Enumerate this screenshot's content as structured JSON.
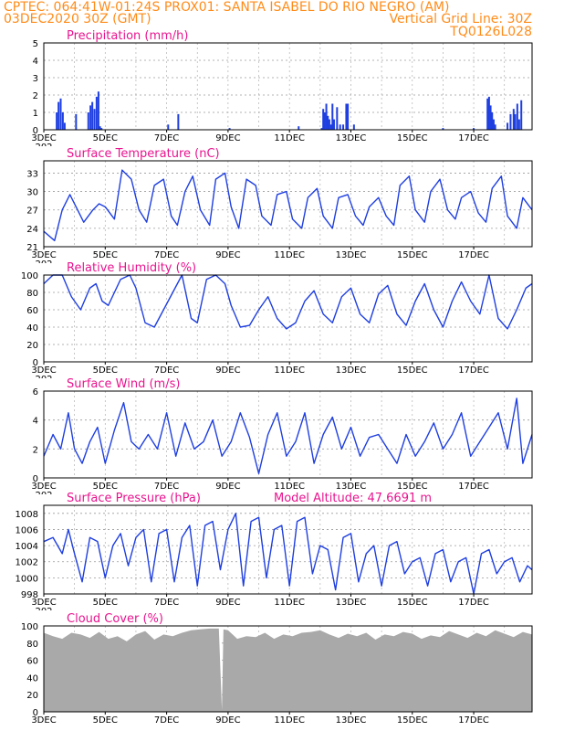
{
  "header": {
    "line1_left": "CPTEC:   064:41W-01:24S   PROX01: SANTA ISABEL DO RIO NEGRO (AM)",
    "line2_left": "03DEC2020 30Z (GMT)",
    "line2_right": "Vertical Grid Line: 30Z",
    "line3_right": "TQ0126L028"
  },
  "colors": {
    "header": "#ff8c1a",
    "title": "#e8158f",
    "series": "#1f3fe0",
    "cloud": "#a9a9a9",
    "precip": "#1f3fe0"
  },
  "x_axis": {
    "labels": [
      "3DEC",
      "5DEC",
      "7DEC",
      "9DEC",
      "11DEC",
      "13DEC",
      "15DEC",
      "17DEC"
    ],
    "label_days": [
      0,
      2,
      4,
      6,
      8,
      10,
      12,
      14
    ],
    "range_days": [
      0,
      15.9
    ],
    "year_fragment": "202"
  },
  "chart_data": [
    {
      "type": "bar",
      "title": "Precipitation (mm/h)",
      "ylim": [
        0,
        5
      ],
      "yticks": [
        0,
        1,
        2,
        3,
        4,
        5
      ],
      "x_days": [
        0.42,
        0.48,
        0.55,
        0.62,
        0.68,
        1.05,
        1.45,
        1.52,
        1.58,
        1.65,
        1.72,
        1.78,
        1.83,
        1.88,
        4.05,
        4.38,
        6.05,
        8.3,
        9.05,
        9.1,
        9.15,
        9.2,
        9.25,
        9.3,
        9.35,
        9.4,
        9.45,
        9.55,
        9.65,
        9.75,
        9.85,
        9.9,
        10.1,
        13.0,
        14.0,
        14.45,
        14.5,
        14.55,
        14.6,
        14.65,
        14.7,
        15.1,
        15.2,
        15.3,
        15.35,
        15.42,
        15.48,
        15.55
      ],
      "values": [
        1.0,
        1.6,
        1.8,
        1.0,
        0.4,
        0.9,
        1.0,
        1.4,
        1.6,
        1.2,
        1.9,
        2.2,
        0.2,
        0.1,
        0.3,
        0.9,
        0.1,
        0.2,
        0.1,
        1.2,
        1.0,
        1.5,
        0.8,
        0.6,
        0.3,
        1.5,
        0.6,
        1.3,
        0.3,
        0.3,
        1.5,
        1.5,
        0.3,
        0.1,
        0.1,
        1.8,
        1.9,
        1.4,
        1.0,
        0.6,
        0.3,
        0.4,
        0.9,
        1.2,
        0.9,
        1.5,
        0.6,
        1.7
      ]
    },
    {
      "type": "line",
      "title": "Surface Temperature (nC)",
      "ylim": [
        21,
        35
      ],
      "yticks": [
        21,
        24,
        27,
        30,
        33
      ],
      "x_days": [
        0,
        0.35,
        0.6,
        0.85,
        1.1,
        1.3,
        1.6,
        1.8,
        2.0,
        2.3,
        2.55,
        2.85,
        3.1,
        3.35,
        3.6,
        3.9,
        4.15,
        4.35,
        4.6,
        4.85,
        5.1,
        5.4,
        5.6,
        5.9,
        6.1,
        6.35,
        6.6,
        6.9,
        7.1,
        7.4,
        7.6,
        7.9,
        8.1,
        8.4,
        8.6,
        8.9,
        9.1,
        9.4,
        9.6,
        9.9,
        10.15,
        10.4,
        10.6,
        10.9,
        11.15,
        11.4,
        11.6,
        11.9,
        12.1,
        12.4,
        12.6,
        12.9,
        13.15,
        13.4,
        13.6,
        13.9,
        14.15,
        14.4,
        14.6,
        14.9,
        15.1,
        15.4,
        15.6,
        15.9
      ],
      "values": [
        23.5,
        22,
        27,
        29.5,
        27,
        25,
        27,
        28,
        27.5,
        25.5,
        33.5,
        32,
        27,
        25,
        31,
        32,
        26,
        24.5,
        30,
        32.5,
        27,
        24.5,
        32,
        33,
        27.5,
        24,
        32,
        31,
        26,
        24.5,
        29.5,
        30,
        25.5,
        24,
        29,
        30.5,
        26,
        24,
        29,
        29.5,
        26,
        24.5,
        27.5,
        29,
        26,
        24.5,
        31,
        32.5,
        27,
        25,
        30,
        32,
        27,
        25.5,
        29,
        30,
        26.5,
        25,
        30.5,
        32.5,
        26,
        24,
        29,
        27
      ]
    },
    {
      "type": "line",
      "title": "Relative Humidity (%)",
      "ylim": [
        0,
        100
      ],
      "yticks": [
        0,
        20,
        40,
        60,
        80,
        100
      ],
      "x_days": [
        0,
        0.3,
        0.6,
        0.9,
        1.2,
        1.5,
        1.7,
        1.9,
        2.1,
        2.3,
        2.5,
        2.8,
        3.0,
        3.3,
        3.6,
        3.9,
        4.2,
        4.5,
        4.8,
        5.0,
        5.3,
        5.6,
        5.9,
        6.1,
        6.4,
        6.7,
        7.0,
        7.3,
        7.6,
        7.9,
        8.2,
        8.5,
        8.8,
        9.1,
        9.4,
        9.7,
        10.0,
        10.3,
        10.6,
        10.9,
        11.2,
        11.5,
        11.8,
        12.1,
        12.4,
        12.7,
        13.0,
        13.3,
        13.6,
        13.9,
        14.2,
        14.5,
        14.8,
        15.1,
        15.4,
        15.7,
        15.9
      ],
      "values": [
        90,
        100,
        100,
        75,
        60,
        85,
        90,
        70,
        65,
        80,
        95,
        100,
        85,
        45,
        40,
        60,
        80,
        100,
        50,
        45,
        95,
        100,
        90,
        65,
        40,
        42,
        60,
        75,
        50,
        38,
        45,
        70,
        82,
        55,
        45,
        75,
        85,
        55,
        45,
        78,
        88,
        55,
        42,
        70,
        90,
        60,
        40,
        70,
        92,
        70,
        55,
        100,
        50,
        38,
        60,
        85,
        90
      ]
    },
    {
      "type": "line",
      "title": "Surface Wind (m/s)",
      "ylim": [
        0,
        6
      ],
      "yticks": [
        0,
        2,
        4,
        6
      ],
      "x_days": [
        0,
        0.3,
        0.55,
        0.8,
        1.0,
        1.25,
        1.5,
        1.75,
        2.0,
        2.3,
        2.6,
        2.85,
        3.1,
        3.4,
        3.7,
        4.0,
        4.3,
        4.6,
        4.9,
        5.2,
        5.5,
        5.8,
        6.1,
        6.4,
        6.7,
        7.0,
        7.3,
        7.6,
        7.9,
        8.2,
        8.5,
        8.8,
        9.1,
        9.4,
        9.7,
        10.0,
        10.3,
        10.6,
        10.9,
        11.2,
        11.5,
        11.8,
        12.1,
        12.4,
        12.7,
        13.0,
        13.3,
        13.6,
        13.9,
        14.2,
        14.5,
        14.8,
        15.1,
        15.4,
        15.6,
        15.9
      ],
      "values": [
        1.5,
        3,
        2,
        4.5,
        2,
        1,
        2.5,
        3.5,
        1,
        3.3,
        5.2,
        2.5,
        2,
        3,
        2,
        4.5,
        1.5,
        3.8,
        2,
        2.5,
        4,
        1.5,
        2.5,
        4.5,
        2.8,
        0.3,
        3,
        4.5,
        1.5,
        2.5,
        4.5,
        1,
        3,
        4.2,
        2,
        3.5,
        1.5,
        2.8,
        3,
        2,
        1,
        3,
        1.5,
        2.5,
        3.8,
        2,
        3,
        4.5,
        1.5,
        2.5,
        3.5,
        4.5,
        2,
        5.5,
        1,
        3
      ]
    },
    {
      "type": "line",
      "title": "Surface Pressure (hPa)",
      "subtitle": "Model Altitude: 47.6691  m",
      "ylim": [
        998,
        1009
      ],
      "yticks": [
        998,
        1000,
        1002,
        1004,
        1006,
        1008
      ],
      "x_days": [
        0,
        0.3,
        0.6,
        0.8,
        1.0,
        1.25,
        1.5,
        1.75,
        2.0,
        2.25,
        2.5,
        2.75,
        3.0,
        3.25,
        3.5,
        3.75,
        4.0,
        4.25,
        4.5,
        4.75,
        5.0,
        5.25,
        5.5,
        5.75,
        6.0,
        6.25,
        6.5,
        6.75,
        7.0,
        7.25,
        7.5,
        7.75,
        8.0,
        8.25,
        8.5,
        8.75,
        9.0,
        9.25,
        9.5,
        9.75,
        10.0,
        10.25,
        10.5,
        10.75,
        11.0,
        11.25,
        11.5,
        11.75,
        12.0,
        12.25,
        12.5,
        12.75,
        13.0,
        13.25,
        13.5,
        13.75,
        14.0,
        14.25,
        14.5,
        14.75,
        15.0,
        15.25,
        15.5,
        15.75,
        15.9
      ],
      "values": [
        1004.5,
        1005,
        1003,
        1006,
        1003,
        999.5,
        1005,
        1004.5,
        1000,
        1004,
        1005.5,
        1001.5,
        1005,
        1006,
        999.5,
        1005.5,
        1006,
        999.5,
        1005,
        1006.5,
        999,
        1006.5,
        1007,
        1001,
        1006,
        1008,
        999,
        1007,
        1007.5,
        1000,
        1006,
        1006.5,
        999,
        1007,
        1007.5,
        1000.5,
        1004,
        1003.5,
        998.5,
        1005,
        1005.5,
        999.5,
        1003,
        1004,
        999,
        1004,
        1004.5,
        1000.5,
        1002,
        1002.5,
        999,
        1003,
        1003.5,
        999.5,
        1002,
        1002.5,
        998,
        1003,
        1003.5,
        1000.5,
        1002,
        1002.5,
        999.5,
        1001.5,
        1001
      ]
    },
    {
      "type": "area",
      "title": "Cloud Cover (%)",
      "ylim": [
        0,
        100
      ],
      "yticks": [
        0,
        20,
        40,
        60,
        80,
        100
      ],
      "x_days": [
        0,
        0.3,
        0.6,
        0.9,
        1.2,
        1.5,
        1.8,
        2.1,
        2.4,
        2.7,
        3.0,
        3.3,
        3.6,
        3.9,
        4.2,
        4.5,
        4.8,
        5.1,
        5.4,
        5.7,
        5.8,
        5.85,
        6.0,
        6.3,
        6.6,
        6.9,
        7.2,
        7.5,
        7.8,
        8.1,
        8.4,
        8.7,
        9.0,
        9.3,
        9.6,
        9.9,
        10.2,
        10.5,
        10.8,
        11.1,
        11.4,
        11.7,
        12.0,
        12.3,
        12.6,
        12.9,
        13.2,
        13.5,
        13.8,
        14.1,
        14.4,
        14.7,
        15.0,
        15.3,
        15.6,
        15.9
      ],
      "values": [
        92,
        88,
        85,
        92,
        90,
        86,
        93,
        85,
        88,
        82,
        90,
        94,
        84,
        90,
        88,
        92,
        95,
        96,
        97,
        97,
        2,
        96,
        95,
        85,
        88,
        87,
        92,
        85,
        90,
        88,
        92,
        93,
        95,
        90,
        86,
        91,
        88,
        92,
        84,
        90,
        88,
        93,
        91,
        85,
        89,
        87,
        94,
        90,
        86,
        92,
        88,
        95,
        91,
        87,
        93,
        90
      ]
    }
  ]
}
